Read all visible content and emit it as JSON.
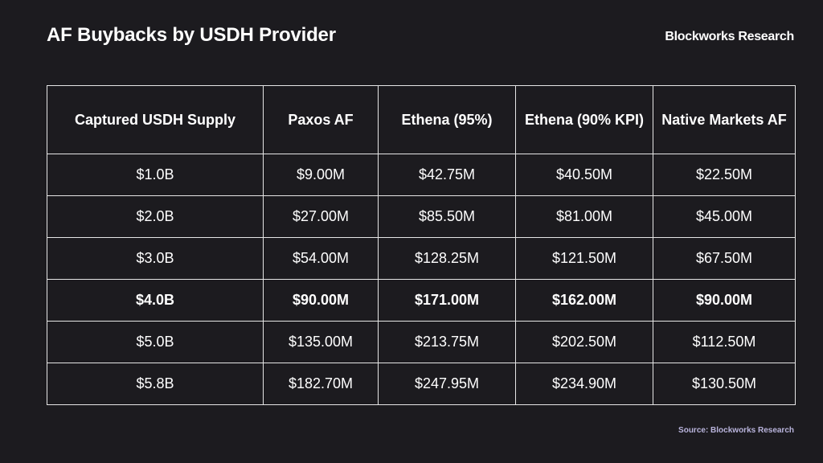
{
  "chart_data": {
    "type": "table",
    "title": "AF Buybacks by USDH Provider",
    "columns": [
      "Captured USDH Supply",
      "Paxos AF",
      "Ethena (95%)",
      "Ethena (90% KPI)",
      "Native Markets AF"
    ],
    "rows": [
      [
        "$1.0B",
        "$9.00M",
        "$42.75M",
        "$40.50M",
        "$22.50M"
      ],
      [
        "$2.0B",
        "$27.00M",
        "$85.50M",
        "$81.00M",
        "$45.00M"
      ],
      [
        "$3.0B",
        "$54.00M",
        "$128.25M",
        "$121.50M",
        "$67.50M"
      ],
      [
        "$4.0B",
        "$90.00M",
        "$171.00M",
        "$162.00M",
        "$90.00M"
      ],
      [
        "$5.0B",
        "$135.00M",
        "$213.75M",
        "$202.50M",
        "$112.50M"
      ],
      [
        "$5.8B",
        "$182.70M",
        "$247.95M",
        "$234.90M",
        "$130.50M"
      ]
    ],
    "highlighted_row": 3
  },
  "brand": "Blockworks Research",
  "source": "Source: Blockworks Research",
  "colors": {
    "background": "#1c1b1f",
    "text": "#ffffff",
    "border": "#e6e6e6",
    "source_text": "#b9b4dc"
  }
}
